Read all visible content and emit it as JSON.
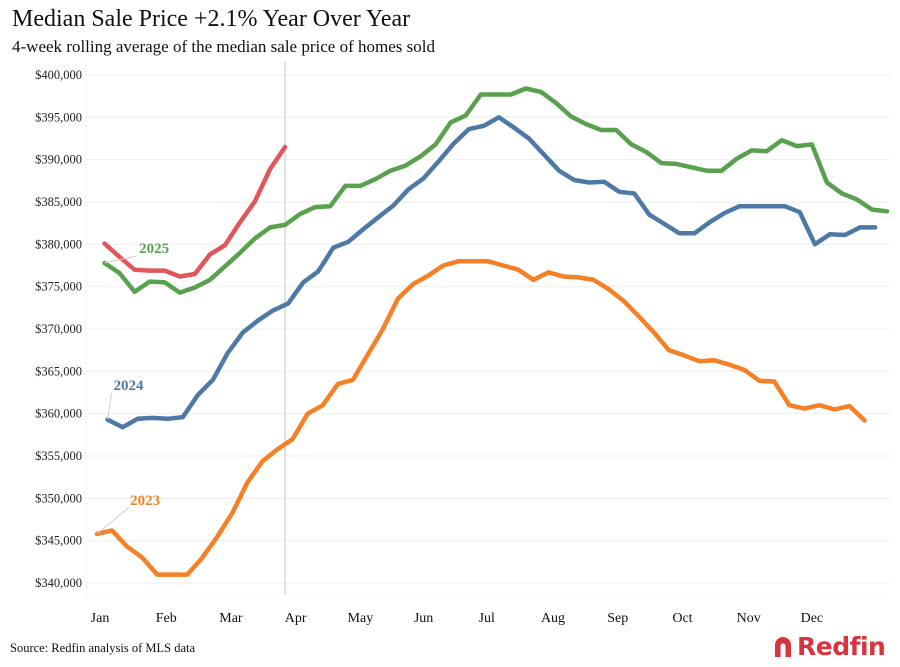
{
  "header": {
    "title": "Median Sale Price +2.1% Year Over Year",
    "subtitle": "4-week rolling average of the median sale price of homes sold"
  },
  "footer": {
    "source": "Source: Redfin analysis of MLS data",
    "brand": "Redfin",
    "brand_color": "#d9333f"
  },
  "chart_data": {
    "type": "line",
    "title": "Median Sale Price +2.1% Year Over Year",
    "subtitle": "4-week rolling average of the median sale price of homes sold",
    "xlabel": "",
    "ylabel": "",
    "x_unit": "week of year",
    "xlim": [
      0,
      52
    ],
    "ylim": [
      338000,
      401500
    ],
    "grid": true,
    "legend": "inline labels",
    "x_ticks": [
      {
        "label": "Jan",
        "week": 0.2
      },
      {
        "label": "Feb",
        "week": 4.6
      },
      {
        "label": "Mar",
        "week": 8.9
      },
      {
        "label": "Apr",
        "week": 13.2
      },
      {
        "label": "May",
        "week": 17.5
      },
      {
        "label": "Jun",
        "week": 21.7
      },
      {
        "label": "Jul",
        "week": 25.9
      },
      {
        "label": "Aug",
        "week": 30.3
      },
      {
        "label": "Sep",
        "week": 34.6
      },
      {
        "label": "Oct",
        "week": 38.9
      },
      {
        "label": "Nov",
        "week": 43.3
      },
      {
        "label": "Dec",
        "week": 47.5
      }
    ],
    "y_ticks": [
      {
        "label": "$340,000",
        "value": 340000
      },
      {
        "label": "$345,000",
        "value": 345000
      },
      {
        "label": "$350,000",
        "value": 350000
      },
      {
        "label": "$355,000",
        "value": 355000
      },
      {
        "label": "$360,000",
        "value": 360000
      },
      {
        "label": "$365,000",
        "value": 365000
      },
      {
        "label": "$370,000",
        "value": 370000
      },
      {
        "label": "$375,000",
        "value": 375000
      },
      {
        "label": "$380,000",
        "value": 380000
      },
      {
        "label": "$385,000",
        "value": 385000
      },
      {
        "label": "$390,000",
        "value": 390000
      },
      {
        "label": "$395,000",
        "value": 395000
      },
      {
        "label": "$400,000",
        "value": 400000
      }
    ],
    "reference_line": {
      "week": 12.5,
      "description": "latest data marker"
    },
    "series": [
      {
        "name": "2023",
        "label": "2023",
        "color": "#f58025",
        "start_week": 0,
        "values": [
          345800,
          346200,
          344300,
          343000,
          341000,
          341000,
          341000,
          343000,
          345500,
          348300,
          351900,
          354400,
          355800,
          357000,
          360000,
          361000,
          363500,
          364000,
          367000,
          370000,
          373600,
          375300,
          376300,
          377500,
          378000,
          378000,
          378000,
          377500,
          377000,
          375800,
          376700,
          376200,
          376100,
          375800,
          374700,
          373300,
          371500,
          369600,
          367500,
          366900,
          366200,
          366300,
          365800,
          365200,
          363900,
          363800,
          361000,
          360600,
          361000,
          360500,
          360900,
          359200
        ]
      },
      {
        "name": "2024",
        "label": "2024",
        "color": "#4e79a7",
        "start_week": 0.7,
        "values": [
          359300,
          358400,
          359400,
          359500,
          359400,
          359600,
          362200,
          364000,
          367200,
          369600,
          371000,
          372200,
          373000,
          375500,
          376800,
          379600,
          380300,
          381800,
          383200,
          384600,
          386500,
          387800,
          389800,
          391900,
          393600,
          394000,
          395000,
          393800,
          392500,
          390600,
          388700,
          387600,
          387300,
          387400,
          386200,
          386000,
          383500,
          382400,
          381300,
          381300,
          382600,
          383700,
          384500,
          384500,
          384500,
          384500,
          383800,
          380000,
          381200,
          381100,
          382000,
          382000
        ]
      },
      {
        "name": "2025 label series",
        "label": "2025",
        "color": "#59a14f",
        "start_week": 0.5,
        "values": [
          377800,
          376600,
          374400,
          375600,
          375500,
          374300,
          374900,
          375800,
          377400,
          379000,
          380700,
          382000,
          382300,
          383600,
          384400,
          384500,
          386900,
          386900,
          387700,
          388700,
          389300,
          390400,
          391800,
          394400,
          395200,
          397700,
          397700,
          397700,
          398400,
          398000,
          396700,
          395100,
          394200,
          393500,
          393500,
          391800,
          390900,
          389600,
          389500,
          389100,
          388700,
          388700,
          390100,
          391100,
          391000,
          392300,
          391600,
          391800,
          387300,
          386000,
          385300,
          384100,
          383900
        ]
      },
      {
        "name": "Current year (unlabeled)",
        "label": "",
        "color": "#e15759",
        "start_week": 0.5,
        "values": [
          380100,
          378500,
          377000,
          376900,
          376900,
          376200,
          376500,
          378800,
          379900,
          382600,
          385100,
          388900,
          391500
        ]
      }
    ],
    "annotations": [
      {
        "text": "2025",
        "series": "2025 label series",
        "anchor_week": 0.5,
        "anchor_value": 377800,
        "label_week": 2.8,
        "label_value": 379000
      },
      {
        "text": "2024",
        "series": "2024",
        "anchor_week": 0.7,
        "anchor_value": 359300,
        "label_week": 1.1,
        "label_value": 362800
      },
      {
        "text": "2023",
        "series": "2023",
        "anchor_week": 0,
        "anchor_value": 345800,
        "label_week": 2.2,
        "label_value": 349200
      }
    ]
  }
}
